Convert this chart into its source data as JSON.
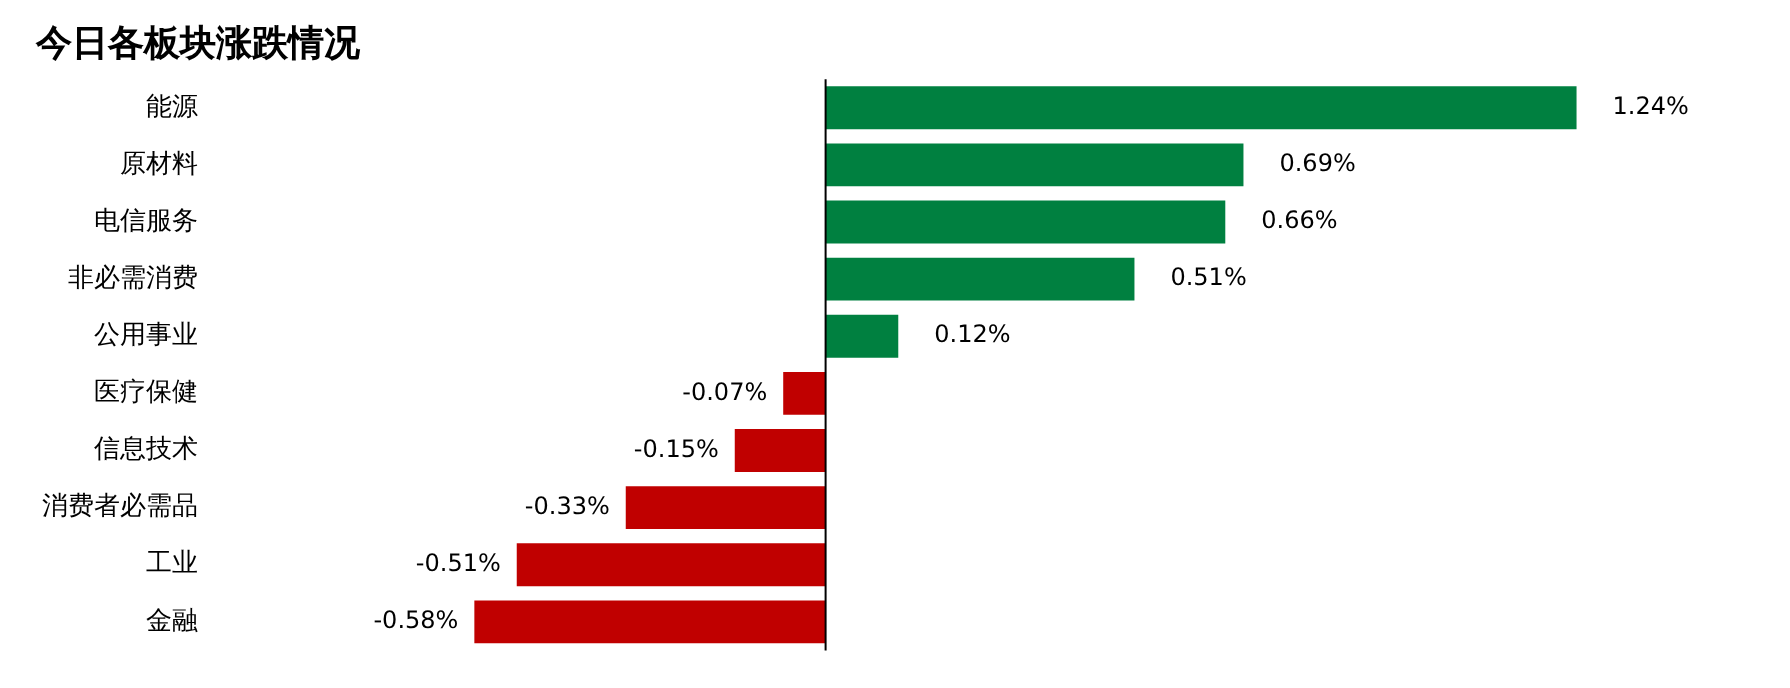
{
  "chart_data": {
    "type": "bar",
    "orientation": "horizontal",
    "title": "今日各板块涨跌情况",
    "categories": [
      "能源",
      "原材料",
      "电信服务",
      "非必需消费",
      "公用事业",
      "医疗保健",
      "信息技术",
      "消费者必需品",
      "工业",
      "金融"
    ],
    "values": [
      1.24,
      0.69,
      0.66,
      0.51,
      0.12,
      -0.07,
      -0.15,
      -0.33,
      -0.51,
      -0.58
    ],
    "colors": [
      "#008040",
      "#008040",
      "#008040",
      "#008040",
      "#008040",
      "#c00000",
      "#c00000",
      "#c00000",
      "#c00000",
      "#c00000"
    ],
    "value_labels": [
      "1.24%",
      "0.69%",
      "0.66%",
      "0.51%",
      "0.12%",
      "-0.07%",
      "-0.15%",
      "-0.33%",
      "-0.51%",
      "-0.58%"
    ],
    "legend": false
  }
}
